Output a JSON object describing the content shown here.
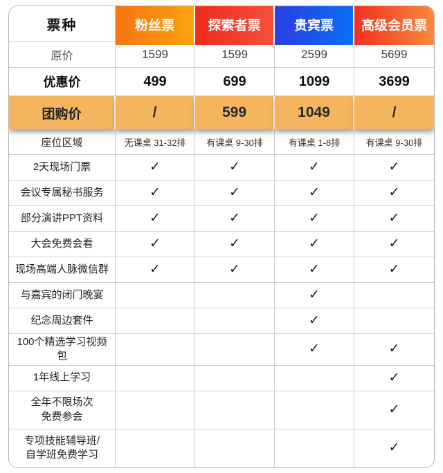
{
  "chart_data": {
    "type": "table",
    "check_glyph": "✓",
    "columns": [
      {
        "id": "ticket-type",
        "label": "票种"
      },
      {
        "id": "fan",
        "label": "粉丝票",
        "color_from": "#F87412",
        "color_to": "#FBA30F"
      },
      {
        "id": "explorer",
        "label": "探索者票",
        "color_from": "#EE2B1B",
        "color_to": "#F6503A"
      },
      {
        "id": "vip",
        "label": "贵宾票",
        "color_from": "#2A3FE4",
        "color_to": "#0B6EF3"
      },
      {
        "id": "premium",
        "label": "高级会员票",
        "color_from": "#F1301F",
        "color_to": "#FB8A3C"
      }
    ],
    "price_rows": [
      {
        "label": "原价",
        "values": [
          "1599",
          "1599",
          "2599",
          "5699"
        ]
      },
      {
        "label": "优惠价",
        "values": [
          "499",
          "699",
          "1099",
          "3699"
        ]
      }
    ],
    "group_row": {
      "label": "团购价",
      "values": [
        "/",
        "599",
        "1049",
        "/"
      ],
      "bg": "#F5B55F"
    },
    "seat_row": {
      "label": "座位区域",
      "values": [
        "无课桌 31-32排",
        "有课桌 9-30排",
        "有课桌 1-8排",
        "有课桌 9-30排"
      ]
    },
    "feature_rows": [
      {
        "label": "2天现场门票",
        "values": [
          true,
          true,
          true,
          true
        ]
      },
      {
        "label": "会议专属秘书服务",
        "values": [
          true,
          true,
          true,
          true
        ]
      },
      {
        "label": "部分演讲PPT资料",
        "values": [
          true,
          true,
          true,
          true
        ]
      },
      {
        "label": "大会免费会看",
        "values": [
          true,
          true,
          true,
          true
        ]
      },
      {
        "label": "现场高端人脉微信群",
        "values": [
          true,
          true,
          true,
          true
        ]
      },
      {
        "label": "与嘉宾的闭门晚宴",
        "values": [
          false,
          false,
          true,
          false
        ]
      },
      {
        "label": "纪念周边套件",
        "values": [
          false,
          false,
          true,
          false
        ]
      },
      {
        "label": "100个精选学习视频包",
        "values": [
          false,
          false,
          true,
          true
        ]
      },
      {
        "label": "1年线上学习",
        "values": [
          false,
          false,
          false,
          true
        ]
      },
      {
        "label": "全年不限场次\n免费参会",
        "values": [
          false,
          false,
          false,
          true
        ]
      },
      {
        "label": "专项技能辅导班/\n自学班免费学习",
        "values": [
          false,
          false,
          false,
          true
        ]
      }
    ]
  }
}
